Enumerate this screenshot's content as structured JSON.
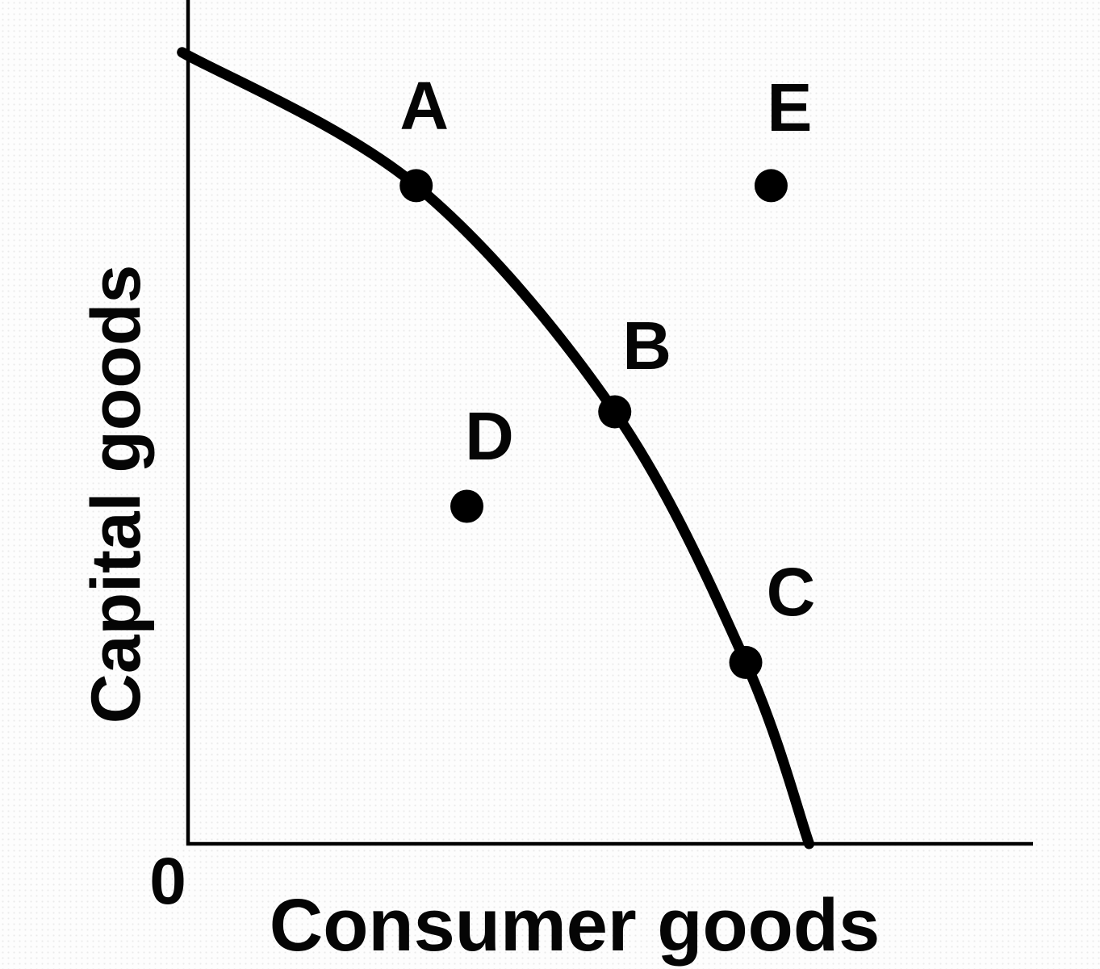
{
  "chart_data": {
    "type": "line",
    "title": "",
    "xlabel": "Consumer goods",
    "ylabel": "Capital goods",
    "origin_label": "0",
    "axes": {
      "x_range": [
        0,
        10
      ],
      "y_range": [
        0,
        10
      ],
      "value_scale_note": "axes carry no numeric tick labels; coordinates normalized to a 0-10 scale",
      "grid": false,
      "tick_labels": []
    },
    "legend": {
      "visible": false
    },
    "series": [
      {
        "name": "production-possibilities-frontier",
        "style": "thick solid black concave curve from y-axis to x-axis",
        "points": [
          [
            -0.07,
            9.38
          ],
          [
            2.7,
            7.8
          ],
          [
            5.05,
            5.12
          ],
          [
            6.6,
            2.15
          ],
          [
            7.35,
            0.0
          ]
        ]
      }
    ],
    "markers": [
      {
        "label": "A",
        "x": 2.7,
        "y": 7.8,
        "relation_to_curve": "on"
      },
      {
        "label": "B",
        "x": 5.05,
        "y": 5.12,
        "relation_to_curve": "on"
      },
      {
        "label": "C",
        "x": 6.6,
        "y": 2.15,
        "relation_to_curve": "on"
      },
      {
        "label": "D",
        "x": 3.3,
        "y": 4.0,
        "relation_to_curve": "inside"
      },
      {
        "label": "E",
        "x": 6.9,
        "y": 7.8,
        "relation_to_curve": "outside"
      }
    ],
    "colors": {
      "foreground": "#000000",
      "background": "#fdfdfd"
    }
  }
}
